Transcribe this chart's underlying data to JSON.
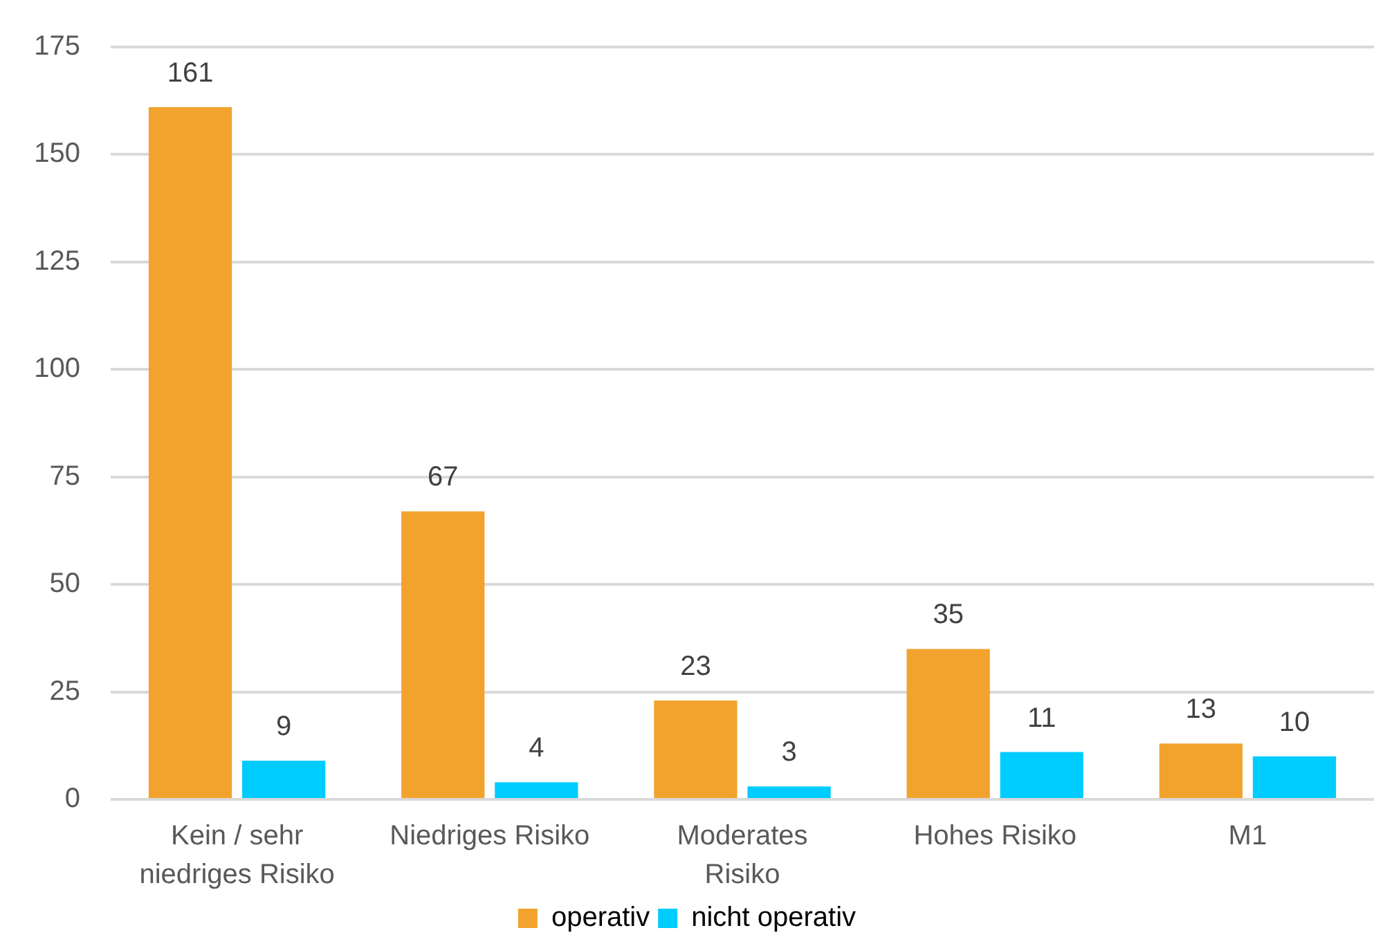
{
  "chart_data": {
    "type": "bar",
    "categories": [
      "Kein / sehr\nniedriges Risiko",
      "Niedriges Risiko",
      "Moderates\nRisiko",
      "Hohes Risiko",
      "M1"
    ],
    "series": [
      {
        "name": "operativ",
        "color": "#f2a32d",
        "values": [
          161,
          67,
          23,
          35,
          13
        ]
      },
      {
        "name": "nicht operativ",
        "color": "#00ccff",
        "values": [
          9,
          4,
          3,
          11,
          10
        ]
      }
    ],
    "ylim": [
      0,
      175
    ],
    "yticks": [
      0,
      25,
      50,
      75,
      100,
      125,
      150,
      175
    ],
    "grid": "y",
    "legend": "bottom",
    "data_labels": true
  }
}
